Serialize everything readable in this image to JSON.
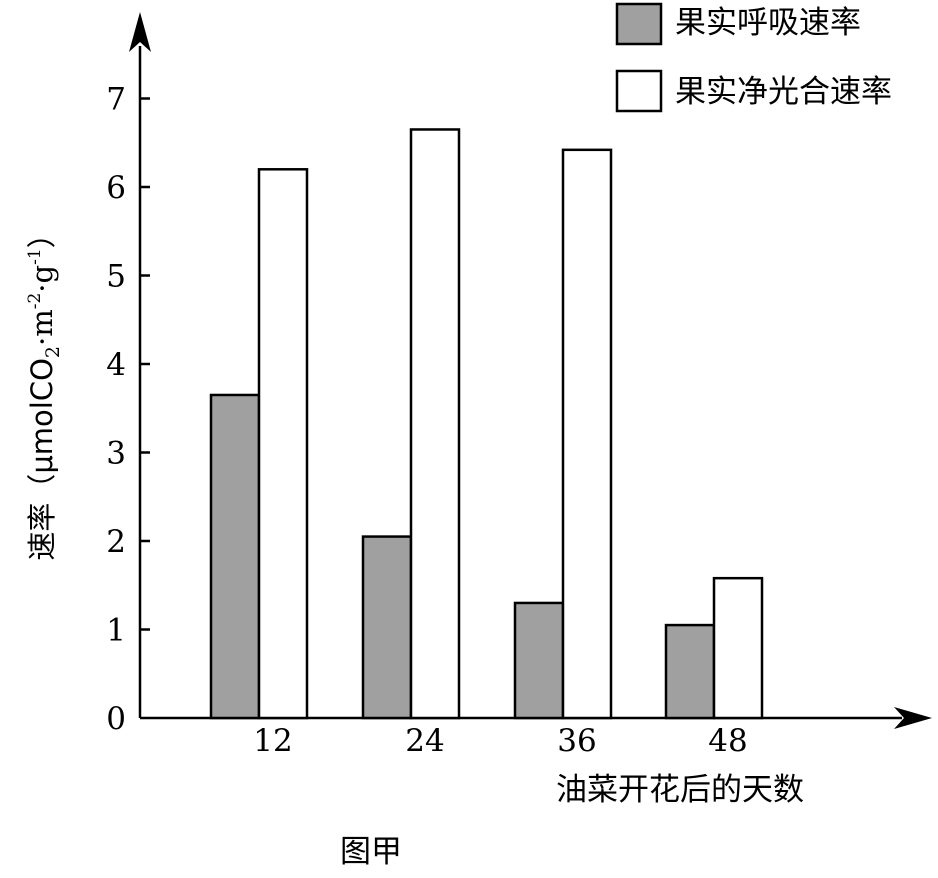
{
  "chart_data": {
    "type": "bar",
    "categories": [
      "12",
      "24",
      "36",
      "48"
    ],
    "series": [
      {
        "name": "果实呼吸速率",
        "values": [
          3.65,
          2.05,
          1.3,
          1.05
        ],
        "color": "#a0a0a0"
      },
      {
        "name": "果实净光合速率",
        "values": [
          6.2,
          6.65,
          6.42,
          1.58
        ],
        "color": "#ffffff"
      }
    ],
    "title": "",
    "xlabel": "油菜开花后的天数",
    "ylabel_prefix": "速率（μmolCO",
    "ylabel_sub": "2",
    "ylabel_mid1": "·m",
    "ylabel_sup1": "-2",
    "ylabel_mid2": "·g",
    "ylabel_sup2": "-1",
    "ylabel_suffix": "）",
    "y_ticks": [
      "0",
      "1",
      "2",
      "3",
      "4",
      "5",
      "6",
      "7"
    ],
    "ylim": [
      0,
      7
    ],
    "grid": false,
    "legend_placement": "top-right",
    "caption": "图甲"
  }
}
